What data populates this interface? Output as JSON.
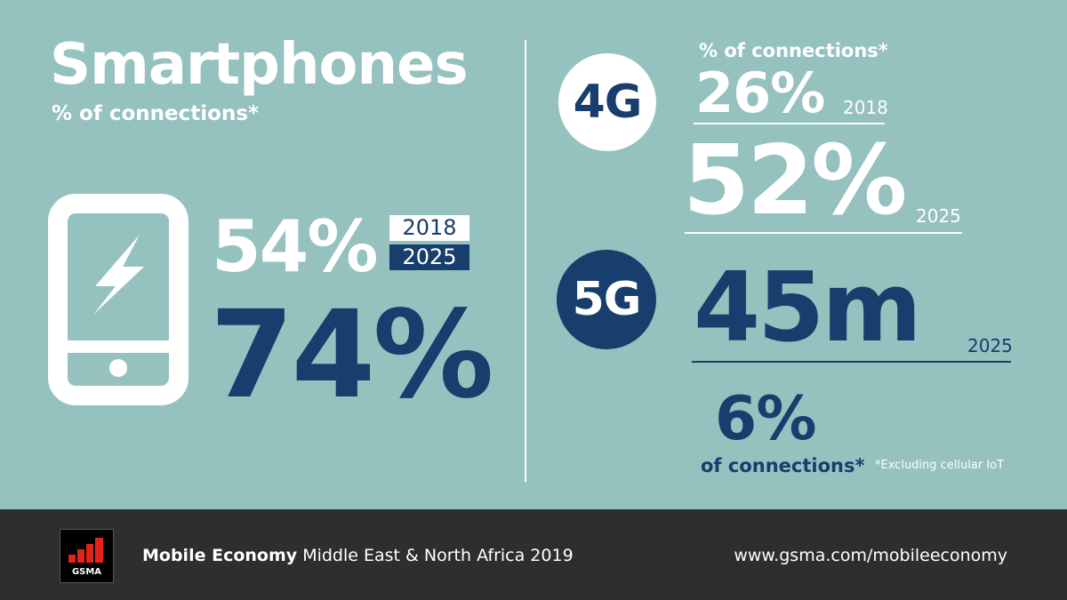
{
  "smartphones": {
    "title": "Smartphones",
    "subtitle": "% of connections*",
    "value_2018": "54%",
    "value_2025": "74%",
    "year_2018": "2018",
    "year_2025": "2025",
    "icon": "smartphone-lightning-icon"
  },
  "g4": {
    "badge": "4G",
    "subtitle": "% of connections*",
    "value_2018": "26%",
    "year_2018": "2018",
    "value_2025": "52%",
    "year_2025": "2025"
  },
  "g5": {
    "badge": "5G",
    "value": "45m",
    "year": "2025",
    "pct": "6%",
    "pct_label": "of connections*"
  },
  "footnote": "*Excluding cellular IoT",
  "footer": {
    "logo_text": "GSMA",
    "publication_bold": "Mobile Economy",
    "publication_rest": "Middle East & North Africa 2019",
    "url": "www.gsma.com/mobileeconomy"
  },
  "colors": {
    "background": "#95c1bf",
    "navy": "#173e6c",
    "footer": "#2f2e2e",
    "logo_red": "#e2231a"
  }
}
